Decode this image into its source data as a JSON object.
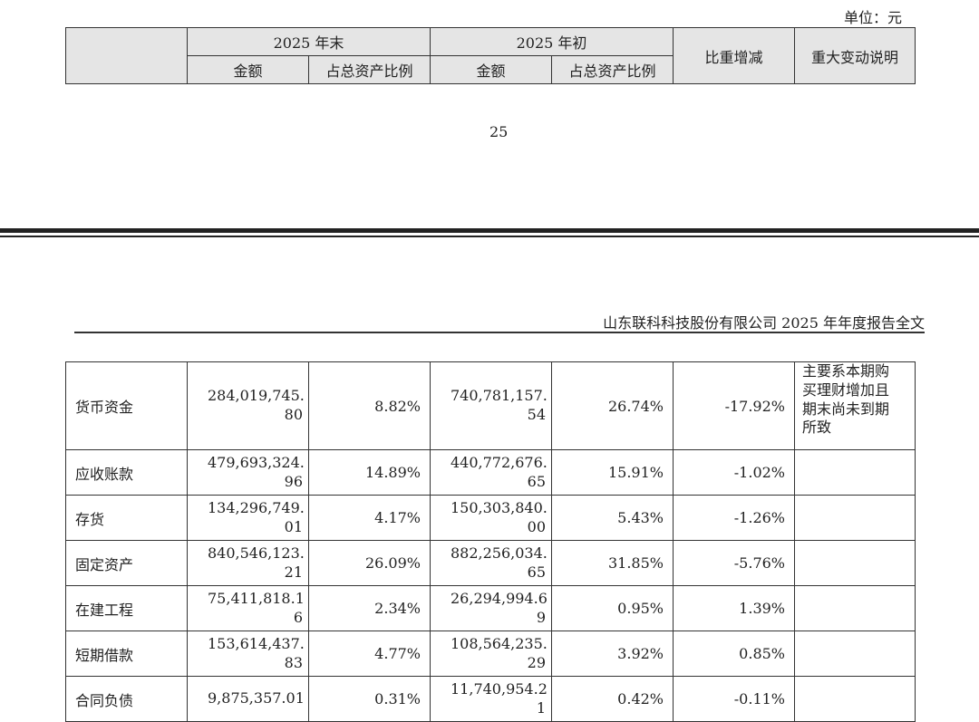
{
  "unit_label": "单位：元",
  "header": {
    "year_end": "2025 年末",
    "year_start": "2025 年初",
    "amount": "金额",
    "ratio": "占总资产比例",
    "change": "比重增减",
    "explanation": "重大变动说明"
  },
  "page_number": "25",
  "running_header": "山东联科科技股份有限公司 2025 年年度报告全文",
  "rows": [
    {
      "name": "货币资金",
      "end_amount": [
        "284,019,745.",
        "80"
      ],
      "end_ratio": "8.82%",
      "start_amount": [
        "740,781,157.",
        "54"
      ],
      "start_ratio": "26.74%",
      "change": "-17.92%",
      "note": [
        "主要系本期购",
        "买理财增加且",
        "期末尚未到期",
        "所致"
      ]
    },
    {
      "name": "应收账款",
      "end_amount": [
        "479,693,324.",
        "96"
      ],
      "end_ratio": "14.89%",
      "start_amount": [
        "440,772,676.",
        "65"
      ],
      "start_ratio": "15.91%",
      "change": "-1.02%",
      "note": []
    },
    {
      "name": "存货",
      "end_amount": [
        "134,296,749.",
        "01"
      ],
      "end_ratio": "4.17%",
      "start_amount": [
        "150,303,840.",
        "00"
      ],
      "start_ratio": "5.43%",
      "change": "-1.26%",
      "note": []
    },
    {
      "name": "固定资产",
      "end_amount": [
        "840,546,123.",
        "21"
      ],
      "end_ratio": "26.09%",
      "start_amount": [
        "882,256,034.",
        "65"
      ],
      "start_ratio": "31.85%",
      "change": "-5.76%",
      "note": []
    },
    {
      "name": "在建工程",
      "end_amount": [
        "75,411,818.1",
        "6"
      ],
      "end_ratio": "2.34%",
      "start_amount": [
        "26,294,994.6",
        "9"
      ],
      "start_ratio": "0.95%",
      "change": "1.39%",
      "note": []
    },
    {
      "name": "短期借款",
      "end_amount": [
        "153,614,437.",
        "83"
      ],
      "end_ratio": "4.77%",
      "start_amount": [
        "108,564,235.",
        "29"
      ],
      "start_ratio": "3.92%",
      "change": "0.85%",
      "note": []
    },
    {
      "name": "合同负债",
      "end_amount": [
        "9,875,357.01",
        ""
      ],
      "end_ratio": "0.31%",
      "start_amount": [
        "11,740,954.2",
        "1"
      ],
      "start_ratio": "0.42%",
      "change": "-0.11%",
      "note": []
    }
  ]
}
